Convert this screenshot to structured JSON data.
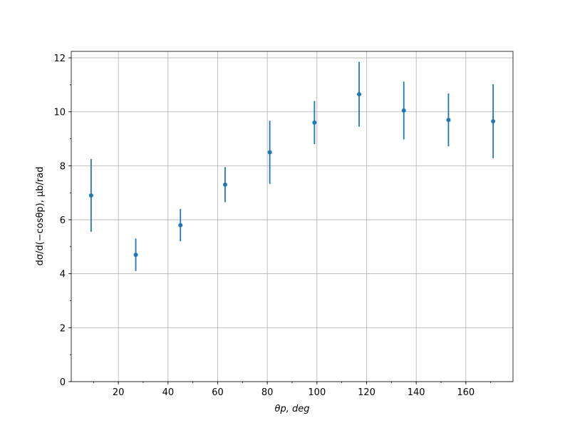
{
  "chart_data": {
    "type": "errorbar",
    "xlabel": "θp, deg",
    "ylabel": "dσ/d(−cosθp), μb/rad",
    "x": [
      9,
      27,
      45,
      63,
      81,
      99,
      117,
      135,
      153,
      171
    ],
    "series": [
      {
        "color": "#1f77b4",
        "values": [
          6.9,
          4.7,
          5.8,
          7.3,
          8.5,
          9.6,
          10.65,
          10.05,
          9.7,
          9.65
        ],
        "errors": [
          1.35,
          0.6,
          0.6,
          0.65,
          1.17,
          0.8,
          1.2,
          1.07,
          0.98,
          1.37
        ]
      }
    ],
    "xlim": [
      1,
      179
    ],
    "xticks": [
      20,
      40,
      60,
      80,
      100,
      120,
      140,
      160
    ],
    "ylim": [
      0,
      12.24
    ],
    "yticks": [
      0,
      2,
      4,
      6,
      8,
      10,
      12
    ],
    "grid": true,
    "minor_ticks": true
  }
}
